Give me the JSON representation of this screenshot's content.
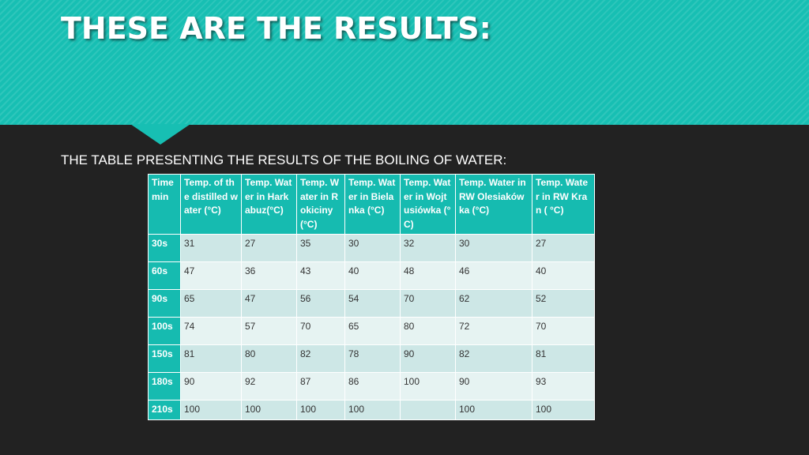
{
  "slide": {
    "title": "THESE ARE THE RESULTS:",
    "subtitle": "THE TABLE PRESENTING THE RESULTS OF THE BOILING OF WATER:"
  },
  "colors": {
    "accent": "#17bfb3",
    "background": "#222222",
    "row_dark": "#cde7e6",
    "row_light": "#e6f3f2"
  },
  "table": {
    "headers": [
      "Time min",
      "Temp. of the distilled water (°C)",
      "Temp. Water in Harkabuz(°C)",
      "Temp. Water in Rokiciny (°C)",
      "Temp. Water in Bielanka (°C)",
      "Temp. Water in Wojtusiówka  (°C)",
      "Temp. Water in RW Olesiakówka (°C)",
      "Temp. Water in RW Kran ( °C)"
    ],
    "rows": [
      {
        "time": "30s",
        "values": [
          "31",
          "27",
          "35",
          "30",
          "32",
          "30",
          "27"
        ]
      },
      {
        "time": "60s",
        "values": [
          "47",
          "36",
          "43",
          "40",
          "48",
          "46",
          "40"
        ]
      },
      {
        "time": "90s",
        "values": [
          "65",
          "47",
          "56",
          "54",
          "70",
          "62",
          "52"
        ]
      },
      {
        "time": "100s",
        "values": [
          "74",
          "57",
          "70",
          "65",
          "80",
          "72",
          "70"
        ]
      },
      {
        "time": "150s",
        "values": [
          "81",
          "80",
          "82",
          "78",
          "90",
          "82",
          "81"
        ]
      },
      {
        "time": "180s",
        "values": [
          "90",
          "92",
          "87",
          "86",
          "100",
          "90",
          "93"
        ]
      },
      {
        "time": "210s",
        "values": [
          "100",
          "100",
          "100",
          "100",
          "",
          "100",
          "100"
        ]
      }
    ]
  }
}
